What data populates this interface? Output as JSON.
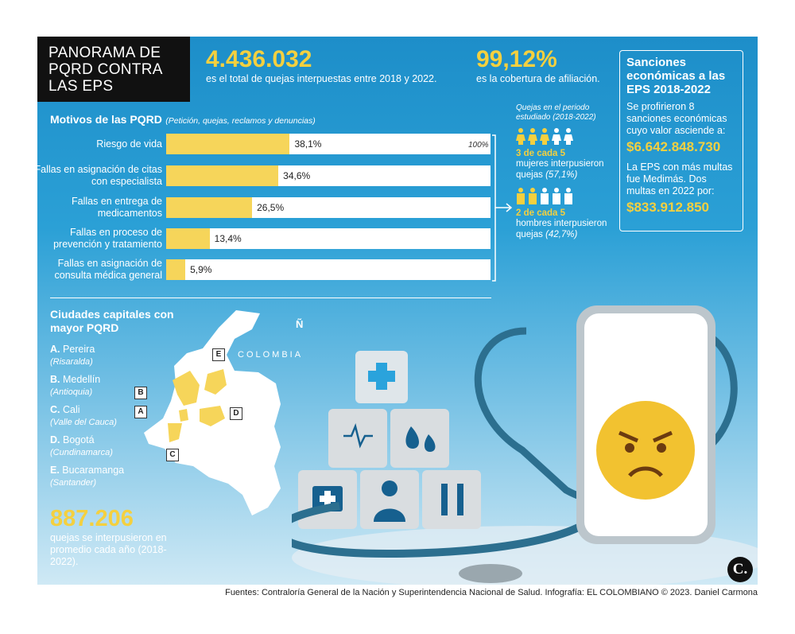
{
  "title": "PANORAMA DE PQRD CONTRA LAS EPS",
  "stats": {
    "total_value": "4.436.032",
    "total_text": "es el total de quejas interpuestas entre 2018 y 2022.",
    "coverage_value": "99,12%",
    "coverage_text": "es la cobertura de afiliación."
  },
  "sanciones": {
    "heading": "Sanciones económicas a las EPS 2018-2022",
    "text1": "Se profirieron 8 sanciones económicas cuyo valor asciende a:",
    "value1": "$6.642.848.730",
    "text2": "La EPS con más multas fue Medimás. Dos multas en 2022 por:",
    "value2": "$833.912.850"
  },
  "motivos": {
    "heading": "Motivos de las PQRD",
    "subheading": "(Petición, quejas, reclamos y denuncias)",
    "max_label": "100%"
  },
  "chart_data": {
    "type": "bar",
    "orientation": "horizontal",
    "categories": [
      "Riesgo de vida",
      "Fallas en asignación de citas con especialista",
      "Fallas en entrega de medicamentos",
      "Fallas en proceso de prevención y tratamiento",
      "Fallas en asignación de consulta médica general"
    ],
    "values": [
      38.1,
      34.6,
      26.5,
      13.4,
      5.9
    ],
    "value_labels": [
      "38,1%",
      "34,6%",
      "26,5%",
      "13,4%",
      "5,9%"
    ],
    "xlim": [
      0,
      100
    ],
    "colors": {
      "fill": "#f6d55a",
      "track": "#ffffff"
    }
  },
  "gender": {
    "heading": "Quejas en el periodo estudiado (2018-2022)",
    "women_ratio": "3 de cada 5",
    "women_text": "mujeres interpusieron quejas",
    "women_pct": "(57,1%)",
    "men_ratio": "2 de cada 5",
    "men_text": "hombres interpusieron quejas",
    "men_pct": "(42,7%)"
  },
  "cities": {
    "heading": "Ciudades capitales con mayor PQRD",
    "items": [
      {
        "letter": "A.",
        "name": "Pereira",
        "dept": "(Risaralda)"
      },
      {
        "letter": "B.",
        "name": "Medellín",
        "dept": "(Antioquia)"
      },
      {
        "letter": "C.",
        "name": "Cali",
        "dept": "(Valle del Cauca)"
      },
      {
        "letter": "D.",
        "name": "Bogotá",
        "dept": "(Cundinamarca)"
      },
      {
        "letter": "E.",
        "name": "Bucaramanga",
        "dept": "(Santander)"
      }
    ],
    "map_label": "COLOMBIA",
    "north": "Ñ",
    "tags": [
      "A",
      "B",
      "C",
      "D",
      "E"
    ]
  },
  "average": {
    "value": "887.206",
    "text": "quejas se interpusieron en promedio cada año (2018-2022)."
  },
  "logo": "C.",
  "footer": "Fuentes: Contraloría General de la Nación y Superintendencia Nacional de Salud. Infografía: EL COLOMBIANO © 2023. Daniel Carmona"
}
